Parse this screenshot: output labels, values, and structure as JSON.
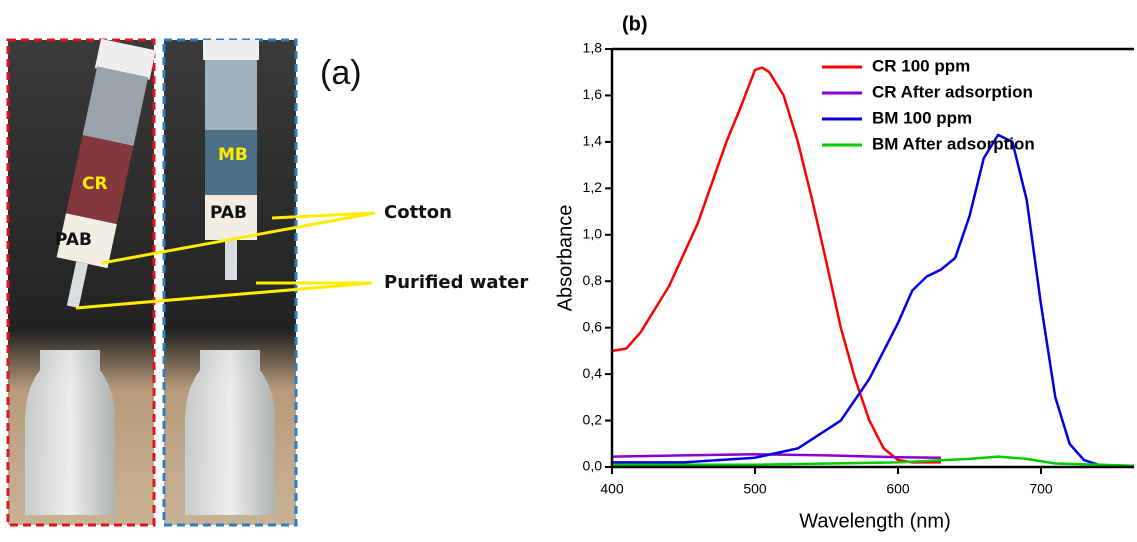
{
  "photo": {
    "panel_label": "(a)",
    "syringe_labels": [
      "CR",
      "PAB",
      "MB",
      "PAB"
    ],
    "arrow_labels": [
      "Cotton",
      "Purified water"
    ]
  },
  "chart_data": {
    "type": "line",
    "title": "(b)",
    "x_label": "Wavelength (nm)",
    "y_label": "Absorbance",
    "xlim": [
      400,
      765
    ],
    "ylim": [
      0,
      1.8
    ],
    "xticks": [
      400,
      500,
      600,
      700
    ],
    "yticks": [
      {
        "value": 0,
        "label": "0,0"
      },
      {
        "value": 0.2,
        "label": "0,2"
      },
      {
        "value": 0.4,
        "label": "0,4"
      },
      {
        "value": 0.6,
        "label": "0,6"
      },
      {
        "value": 0.8,
        "label": "0,8"
      },
      {
        "value": 1.0,
        "label": "1,0"
      },
      {
        "value": 1.2,
        "label": "1,2"
      },
      {
        "value": 1.4,
        "label": "1,4"
      },
      {
        "value": 1.6,
        "label": "1,6"
      },
      {
        "value": 1.8,
        "label": "1,8"
      }
    ],
    "legend": "upper right",
    "series": [
      {
        "name": "CR 100 ppm",
        "color": "#ff0000",
        "x": [
          400,
          410,
          420,
          440,
          460,
          480,
          490,
          500,
          505,
          510,
          520,
          530,
          540,
          550,
          560,
          570,
          580,
          590,
          600,
          610,
          630
        ],
        "values": [
          0.5,
          0.51,
          0.58,
          0.78,
          1.05,
          1.4,
          1.55,
          1.71,
          1.72,
          1.7,
          1.6,
          1.4,
          1.15,
          0.88,
          0.6,
          0.38,
          0.2,
          0.08,
          0.03,
          0.02,
          0.02
        ]
      },
      {
        "name": "CR After adsorption",
        "color": "#8a00d4",
        "x": [
          400,
          450,
          500,
          550,
          600,
          630
        ],
        "values": [
          0.045,
          0.05,
          0.055,
          0.05,
          0.042,
          0.04
        ]
      },
      {
        "name": "BM 100 ppm",
        "color": "#0000e6",
        "x": [
          400,
          450,
          500,
          530,
          560,
          580,
          600,
          610,
          620,
          630,
          640,
          650,
          660,
          670,
          680,
          690,
          700,
          710,
          720,
          730,
          740,
          765
        ],
        "values": [
          0.02,
          0.02,
          0.04,
          0.08,
          0.2,
          0.38,
          0.62,
          0.76,
          0.82,
          0.85,
          0.9,
          1.08,
          1.33,
          1.43,
          1.4,
          1.15,
          0.7,
          0.3,
          0.1,
          0.03,
          0.01,
          0
        ]
      },
      {
        "name": "BM After adsorption",
        "color": "#00cc00",
        "x": [
          400,
          500,
          600,
          650,
          670,
          690,
          710,
          765
        ],
        "values": [
          0.01,
          0.01,
          0.02,
          0.035,
          0.045,
          0.035,
          0.015,
          0.005
        ]
      }
    ]
  }
}
